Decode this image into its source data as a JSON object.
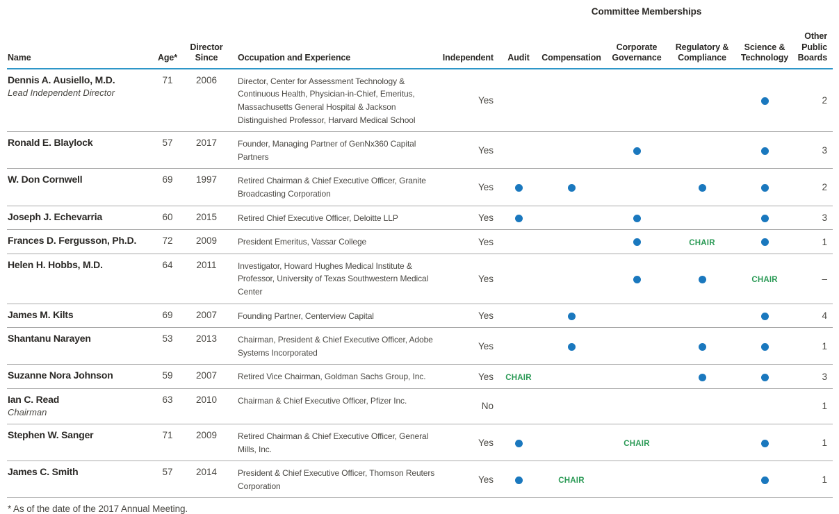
{
  "colors": {
    "rule_blue": "#2e96c8",
    "dot_blue": "#1a78be",
    "chair_green": "#2b9a56",
    "text_dark": "#2b2926",
    "text_body": "#4a4843",
    "rule_gray": "#a9a9a9"
  },
  "table": {
    "committee_memberships_label": "Committee Memberships",
    "chair_label": "CHAIR",
    "member_marker": "dot-icon",
    "columns": {
      "name": "Name",
      "age": "Age*",
      "director_since": "Director Since",
      "occupation": "Occupation and Experience",
      "independent": "Independent",
      "audit": "Audit",
      "compensation": "Compensation",
      "corporate_governance": "Corporate Governance",
      "regulatory_compliance": "Regulatory & Compliance",
      "science_technology": "Science & Technology",
      "other_public_boards": "Other Public Boards"
    },
    "committee_keys": [
      "audit",
      "compensation",
      "corporate_governance",
      "regulatory_compliance",
      "science_technology"
    ],
    "rows": [
      {
        "name": "Dennis A. Ausiello, M.D.",
        "title": "Lead Independent Director",
        "age": "71",
        "since": "2006",
        "occupation": "Director, Center for Assessment Technology & Continuous Health, Physician-in-Chief, Emeritus, Massachusetts General Hospital & Jackson Distinguished Professor, Harvard Medical School",
        "independent": "Yes",
        "committees": {
          "audit": "",
          "compensation": "",
          "corporate_governance": "",
          "regulatory_compliance": "",
          "science_technology": "member"
        },
        "other_public_boards": "2"
      },
      {
        "name": "Ronald E. Blaylock",
        "title": "",
        "age": "57",
        "since": "2017",
        "occupation": "Founder, Managing Partner of GenNx360 Capital Partners",
        "independent": "Yes",
        "committees": {
          "audit": "",
          "compensation": "",
          "corporate_governance": "member",
          "regulatory_compliance": "",
          "science_technology": "member"
        },
        "other_public_boards": "3"
      },
      {
        "name": "W. Don Cornwell",
        "title": "",
        "age": "69",
        "since": "1997",
        "occupation": "Retired Chairman & Chief Executive Officer, Granite Broadcasting Corporation",
        "independent": "Yes",
        "committees": {
          "audit": "member",
          "compensation": "member",
          "corporate_governance": "",
          "regulatory_compliance": "member",
          "science_technology": "member"
        },
        "other_public_boards": "2"
      },
      {
        "name": "Joseph J. Echevarria",
        "title": "",
        "age": "60",
        "since": "2015",
        "occupation": "Retired Chief Executive Officer, Deloitte LLP",
        "independent": "Yes",
        "committees": {
          "audit": "member",
          "compensation": "",
          "corporate_governance": "member",
          "regulatory_compliance": "",
          "science_technology": "member"
        },
        "other_public_boards": "3"
      },
      {
        "name": "Frances D. Fergusson, Ph.D.",
        "title": "",
        "age": "72",
        "since": "2009",
        "occupation": "President Emeritus, Vassar College",
        "independent": "Yes",
        "committees": {
          "audit": "",
          "compensation": "",
          "corporate_governance": "member",
          "regulatory_compliance": "chair",
          "science_technology": "member"
        },
        "other_public_boards": "1"
      },
      {
        "name": "Helen H. Hobbs, M.D.",
        "title": "",
        "age": "64",
        "since": "2011",
        "occupation": "Investigator, Howard Hughes Medical Institute & Professor, University of Texas Southwestern Medical Center",
        "independent": "Yes",
        "committees": {
          "audit": "",
          "compensation": "",
          "corporate_governance": "member",
          "regulatory_compliance": "member",
          "science_technology": "chair"
        },
        "other_public_boards": "–"
      },
      {
        "name": "James M. Kilts",
        "title": "",
        "age": "69",
        "since": "2007",
        "occupation": "Founding Partner, Centerview Capital",
        "independent": "Yes",
        "committees": {
          "audit": "",
          "compensation": "member",
          "corporate_governance": "",
          "regulatory_compliance": "",
          "science_technology": "member"
        },
        "other_public_boards": "4"
      },
      {
        "name": "Shantanu Narayen",
        "title": "",
        "age": "53",
        "since": "2013",
        "occupation": "Chairman, President & Chief Executive Officer, Adobe Systems Incorporated",
        "independent": "Yes",
        "committees": {
          "audit": "",
          "compensation": "member",
          "corporate_governance": "",
          "regulatory_compliance": "member",
          "science_technology": "member"
        },
        "other_public_boards": "1"
      },
      {
        "name": "Suzanne Nora Johnson",
        "title": "",
        "age": "59",
        "since": "2007",
        "occupation": "Retired Vice Chairman, Goldman Sachs Group, Inc.",
        "independent": "Yes",
        "committees": {
          "audit": "chair",
          "compensation": "",
          "corporate_governance": "",
          "regulatory_compliance": "member",
          "science_technology": "member"
        },
        "other_public_boards": "3"
      },
      {
        "name": "Ian C. Read",
        "title": "Chairman",
        "age": "63",
        "since": "2010",
        "occupation": "Chairman & Chief Executive Officer, Pfizer Inc.",
        "independent": "No",
        "committees": {
          "audit": "",
          "compensation": "",
          "corporate_governance": "",
          "regulatory_compliance": "",
          "science_technology": ""
        },
        "other_public_boards": "1"
      },
      {
        "name": "Stephen W. Sanger",
        "title": "",
        "age": "71",
        "since": "2009",
        "occupation": "Retired Chairman & Chief Executive Officer, General Mills, Inc.",
        "independent": "Yes",
        "committees": {
          "audit": "member",
          "compensation": "",
          "corporate_governance": "chair",
          "regulatory_compliance": "",
          "science_technology": "member"
        },
        "other_public_boards": "1"
      },
      {
        "name": "James C. Smith",
        "title": "",
        "age": "57",
        "since": "2014",
        "occupation": "President & Chief Executive Officer, Thomson Reuters Corporation",
        "independent": "Yes",
        "committees": {
          "audit": "member",
          "compensation": "chair",
          "corporate_governance": "",
          "regulatory_compliance": "",
          "science_technology": "member"
        },
        "other_public_boards": "1"
      }
    ]
  },
  "footnote": "* As of the date of the 2017 Annual Meeting."
}
